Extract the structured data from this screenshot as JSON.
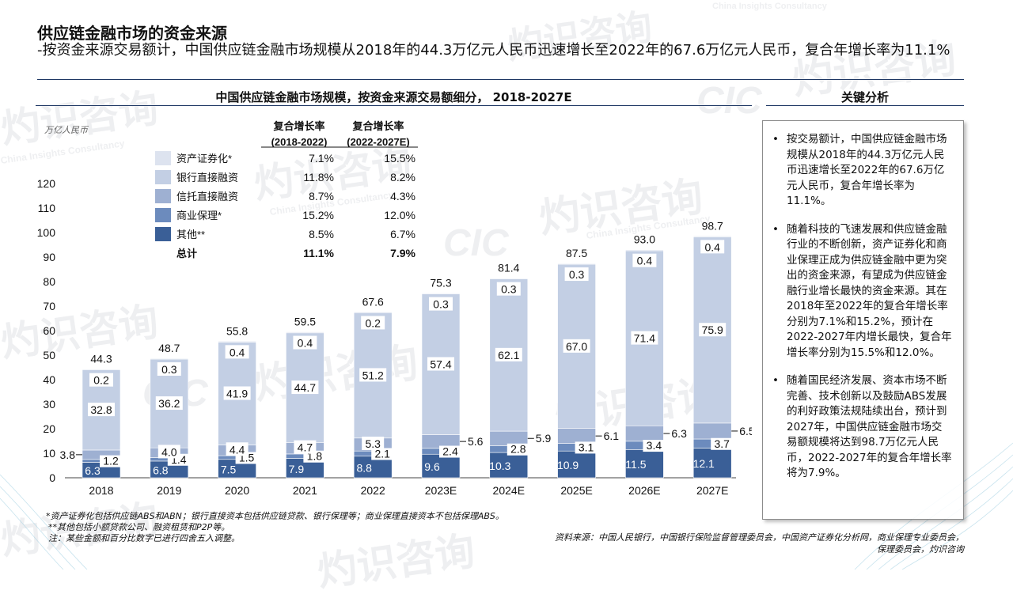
{
  "watermark": {
    "text": "灼识咨询",
    "logo": "CIC",
    "english": "China Insights Consultancy"
  },
  "page": {
    "title": "供应链金融市场的资金来源",
    "subtitle": "-按资金来源交易额计，中国供应链金融市场规模从2018年的44.3万亿元人民币迅速增长至2022年的67.6万亿元人民币，复合年增长率为11.1%"
  },
  "chart_title": "中国供应链金融市场规模，按资金来源交易额细分， 2018-2027E",
  "analysis": {
    "title": "关键分析",
    "bullets": [
      "按交易额计，中国供应链金融市场规模从2018年的44.3万亿元人民币迅速增长至2022年的67.6万亿元人民币，复合年增长率为11.1%。",
      "随着科技的飞速发展和供应链金融行业的不断创新，资产证券化和商业保理正成为供应链金融中更为突出的资金来源，有望成为供应链金融行业增长最快的资金来源。其在2018年至2022年的复合年增长率分别为7.1%和15.2%，预计在2022-2027年内增长最快，复合年增长率分别为15.5%和12.0%。",
      "随着国民经济发展、资本市场不断完善、技术创新以及鼓励ABS发展的利好政策法规陆续出台，预计到2027年，中国供应链金融市场交易额规模将达到98.7万亿元人民币，2022-2027年的复合年增长率将为7.9%。"
    ]
  },
  "footnotes": [
    "*资产证券化包括供应链ABS和ABN；银行直接资本包括供应链贷款、银行保理等；商业保理直接资本不包括保理ABS。",
    "**其他包括小额贷款公司、融资租赁和P2P等。",
    "注：某些金额和百分比数字已进行四舍五入调整。"
  ],
  "source": "资料来源：中国人民银行，中国银行保险监督管理委员会，中国资产证券化分析网，商业保理专业委员会，保理委员会，灼识咨询",
  "colors": {
    "other": "#3a5f97",
    "factoring": "#6c8bbd",
    "trust": "#9eb0d2",
    "bank": "#c3cfe4",
    "abs": "#dde3ef",
    "navy": "#1f3864"
  },
  "chart_data": {
    "type": "bar",
    "stacked": true,
    "unit_label": "万亿人民币",
    "ylim": [
      0,
      120
    ],
    "yticks": [
      0,
      10,
      20,
      30,
      40,
      50,
      60,
      70,
      80,
      90,
      100,
      110,
      120
    ],
    "categories": [
      "2018",
      "2019",
      "2020",
      "2021",
      "2022",
      "2023E",
      "2024E",
      "2025E",
      "2026E",
      "2027E"
    ],
    "series": [
      {
        "name": "其他**",
        "key": "other",
        "values": [
          6.3,
          6.8,
          7.5,
          7.9,
          8.8,
          9.6,
          10.3,
          10.9,
          11.5,
          12.1
        ]
      },
      {
        "name": "商业保理*",
        "key": "factoring",
        "values": [
          1.2,
          1.4,
          1.5,
          1.8,
          2.1,
          2.4,
          2.8,
          3.1,
          3.4,
          3.7
        ]
      },
      {
        "name": "信托直接融资",
        "key": "trust",
        "values": [
          3.8,
          4.0,
          4.4,
          4.7,
          5.3,
          5.6,
          5.9,
          6.1,
          6.3,
          6.5
        ]
      },
      {
        "name": "银行直接融资",
        "key": "bank",
        "values": [
          32.8,
          36.2,
          41.9,
          44.7,
          51.2,
          57.4,
          62.1,
          67.0,
          71.4,
          75.9
        ]
      },
      {
        "name": "资产证券化*",
        "key": "abs",
        "values": [
          0.2,
          0.3,
          0.4,
          0.4,
          0.2,
          0.3,
          0.3,
          0.3,
          0.4,
          0.4
        ]
      }
    ],
    "totals": [
      44.3,
      48.7,
      55.8,
      59.5,
      67.6,
      75.3,
      81.4,
      87.5,
      93.0,
      98.7
    ],
    "cagr_table": {
      "headers": [
        [
          "复合增长率",
          "(2018-2022)"
        ],
        [
          "复合增长率",
          "(2022-2027E)"
        ]
      ],
      "rows": [
        {
          "label": "资产证券化*",
          "key": "abs",
          "c1": "7.1%",
          "c2": "15.5%"
        },
        {
          "label": "银行直接融资",
          "key": "bank",
          "c1": "11.8%",
          "c2": "8.2%"
        },
        {
          "label": "信托直接融资",
          "key": "trust",
          "c1": "8.7%",
          "c2": "4.3%"
        },
        {
          "label": "商业保理*",
          "key": "factoring",
          "c1": "15.2%",
          "c2": "12.0%"
        },
        {
          "label": "其他**",
          "key": "other",
          "c1": "8.5%",
          "c2": "6.7%"
        }
      ],
      "total": {
        "label": "总计",
        "c1": "11.1%",
        "c2": "7.9%"
      }
    }
  }
}
